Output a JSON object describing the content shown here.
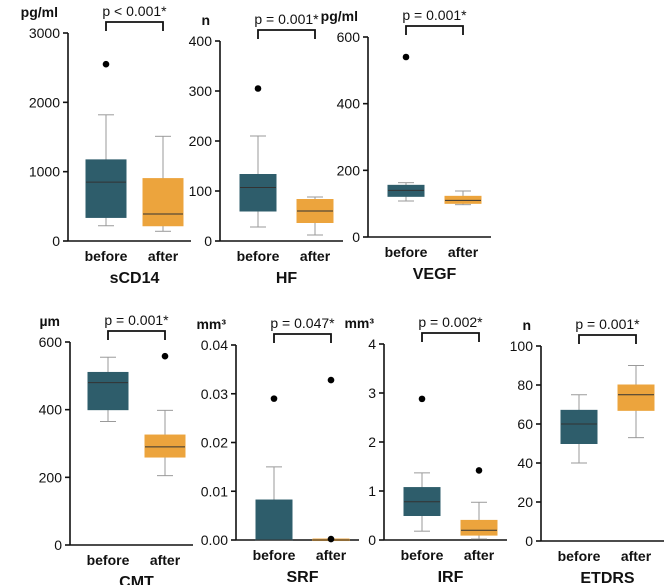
{
  "colors": {
    "before": "#2e5d6b",
    "after": "#eca43d",
    "outlier": "#000000",
    "whisker": "#9a9a9a"
  },
  "chart_data": [
    {
      "type": "box",
      "id": "scd14",
      "title": "",
      "xlabel": "sCD14",
      "unit": "pg/ml",
      "ylim": [
        0,
        3000
      ],
      "yticks": [
        "0",
        "1000",
        "2000",
        "3000"
      ],
      "categories": [
        "before",
        "after"
      ],
      "p_value": "p < 0.001*",
      "boxes": [
        {
          "name": "before",
          "min": 220,
          "q1": 340,
          "median": 850,
          "q3": 1170,
          "max": 1820,
          "outliers": [
            2550
          ]
        },
        {
          "name": "after",
          "min": 140,
          "q1": 220,
          "median": 390,
          "q3": 900,
          "max": 1510,
          "outliers": []
        }
      ]
    },
    {
      "type": "box",
      "id": "hf",
      "title": "",
      "xlabel": "HF",
      "unit": "n",
      "ylim": [
        0,
        400
      ],
      "yticks": [
        "0",
        "100",
        "200",
        "300",
        "400"
      ],
      "categories": [
        "before",
        "after"
      ],
      "p_value": "p = 0.001*",
      "boxes": [
        {
          "name": "before",
          "min": 28,
          "q1": 60,
          "median": 107,
          "q3": 133,
          "max": 210,
          "outliers": [
            305
          ]
        },
        {
          "name": "after",
          "min": 12,
          "q1": 37,
          "median": 60,
          "q3": 83,
          "max": 88,
          "outliers": []
        }
      ]
    },
    {
      "type": "box",
      "id": "vegf",
      "title": "",
      "xlabel": "VEGF",
      "unit": "pg/ml",
      "ylim": [
        0,
        600
      ],
      "yticks": [
        "0",
        "200",
        "400",
        "600"
      ],
      "categories": [
        "before",
        "after"
      ],
      "p_value": "p = 0.001*",
      "boxes": [
        {
          "name": "before",
          "min": 108,
          "q1": 122,
          "median": 140,
          "q3": 155,
          "max": 163,
          "outliers": [
            540
          ]
        },
        {
          "name": "after",
          "min": 97,
          "q1": 101,
          "median": 110,
          "q3": 122,
          "max": 138,
          "outliers": []
        }
      ]
    },
    {
      "type": "box",
      "id": "cmt",
      "title": "",
      "xlabel": "CMT",
      "unit": "µm",
      "ylim": [
        0,
        600
      ],
      "yticks": [
        "0",
        "200",
        "400",
        "600"
      ],
      "categories": [
        "before",
        "after"
      ],
      "p_value": "p = 0.001*",
      "boxes": [
        {
          "name": "before",
          "min": 365,
          "q1": 400,
          "median": 480,
          "q3": 510,
          "max": 555,
          "outliers": []
        },
        {
          "name": "after",
          "min": 205,
          "q1": 260,
          "median": 290,
          "q3": 325,
          "max": 398,
          "outliers": [
            558
          ]
        }
      ]
    },
    {
      "type": "box",
      "id": "srf",
      "title": "",
      "xlabel": "SRF",
      "unit": "mm³",
      "ylim": [
        0,
        0.04
      ],
      "yticks": [
        "0.00",
        "0.01",
        "0.02",
        "0.03",
        "0.04"
      ],
      "categories": [
        "before",
        "after"
      ],
      "p_value": "p = 0.047*",
      "boxes": [
        {
          "name": "before",
          "min": 0,
          "q1": 0,
          "median": 0,
          "q3": 0.0082,
          "max": 0.015,
          "outliers": [
            0.029
          ]
        },
        {
          "name": "after",
          "min": 0,
          "q1": 0,
          "median": 0,
          "q3": 0.0002,
          "max": 0.0002,
          "outliers": [
            0.0328,
            0.0002
          ]
        }
      ]
    },
    {
      "type": "box",
      "id": "irf",
      "title": "",
      "xlabel": "IRF",
      "unit": "mm³",
      "ylim": [
        0,
        4
      ],
      "yticks": [
        "0",
        "1",
        "2",
        "3",
        "4"
      ],
      "categories": [
        "before",
        "after"
      ],
      "p_value": "p = 0.002*",
      "boxes": [
        {
          "name": "before",
          "min": 0.18,
          "q1": 0.5,
          "median": 0.78,
          "q3": 1.07,
          "max": 1.37,
          "outliers": [
            2.88
          ]
        },
        {
          "name": "after",
          "min": 0.02,
          "q1": 0.1,
          "median": 0.2,
          "q3": 0.4,
          "max": 0.77,
          "outliers": [
            1.42
          ]
        }
      ]
    },
    {
      "type": "box",
      "id": "etdrs",
      "title": "",
      "xlabel": "ETDRS",
      "unit": "n",
      "ylim": [
        0,
        100
      ],
      "yticks": [
        "0",
        "20",
        "40",
        "60",
        "80",
        "100"
      ],
      "categories": [
        "before",
        "after"
      ],
      "p_value": "p = 0.001*",
      "boxes": [
        {
          "name": "before",
          "min": 40,
          "q1": 50,
          "median": 60,
          "q3": 67,
          "max": 75,
          "outliers": []
        },
        {
          "name": "after",
          "min": 53,
          "q1": 67,
          "median": 75,
          "q3": 80,
          "max": 90,
          "outliers": []
        }
      ]
    }
  ]
}
